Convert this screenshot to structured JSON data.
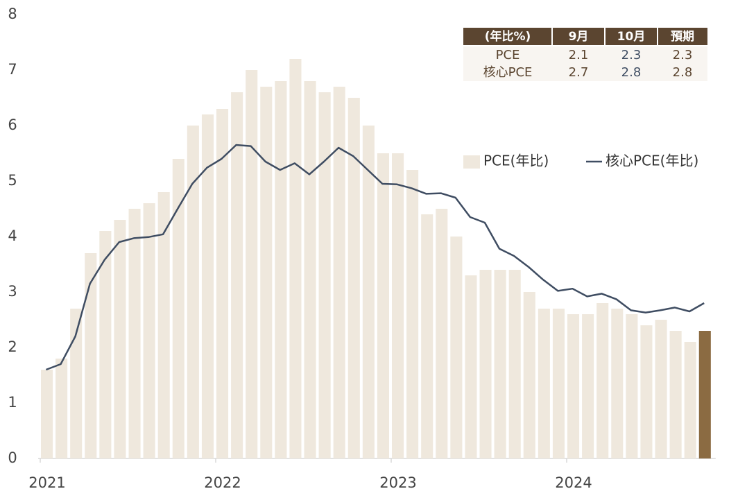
{
  "chart_data": {
    "type": "bar_line",
    "categories": [
      "2021",
      null,
      null,
      null,
      null,
      null,
      null,
      null,
      null,
      null,
      null,
      null,
      "2022",
      null,
      null,
      null,
      null,
      null,
      null,
      null,
      null,
      null,
      null,
      null,
      "2023",
      null,
      null,
      null,
      null,
      null,
      null,
      null,
      null,
      null,
      null,
      null,
      "2024",
      null,
      null,
      null,
      null,
      null,
      null,
      null,
      null,
      null
    ],
    "series": [
      {
        "name": "PCE(年比)",
        "type": "bar",
        "color": "#efe8dd",
        "colors": [
          "#efe8dd",
          "#efe8dd",
          "#efe8dd",
          "#efe8dd",
          "#efe8dd",
          "#efe8dd",
          "#efe8dd",
          "#efe8dd",
          "#efe8dd",
          "#efe8dd",
          "#efe8dd",
          "#efe8dd",
          "#efe8dd",
          "#efe8dd",
          "#efe8dd",
          "#efe8dd",
          "#efe8dd",
          "#efe8dd",
          "#efe8dd",
          "#efe8dd",
          "#efe8dd",
          "#efe8dd",
          "#efe8dd",
          "#efe8dd",
          "#efe8dd",
          "#efe8dd",
          "#efe8dd",
          "#efe8dd",
          "#efe8dd",
          "#efe8dd",
          "#efe8dd",
          "#efe8dd",
          "#efe8dd",
          "#efe8dd",
          "#efe8dd",
          "#efe8dd",
          "#efe8dd",
          "#efe8dd",
          "#efe8dd",
          "#efe8dd",
          "#efe8dd",
          "#efe8dd",
          "#efe8dd",
          "#efe8dd",
          "#efe8dd",
          "#8b6b42"
        ],
        "values": [
          1.6,
          1.8,
          2.7,
          3.7,
          4.1,
          4.3,
          4.5,
          4.6,
          4.8,
          5.4,
          6.0,
          6.2,
          6.3,
          6.6,
          7.0,
          6.7,
          6.8,
          7.2,
          6.8,
          6.6,
          6.7,
          6.5,
          6.0,
          5.5,
          5.5,
          5.2,
          4.4,
          4.5,
          4.0,
          3.3,
          3.4,
          3.4,
          3.4,
          3.0,
          2.7,
          2.7,
          2.6,
          2.6,
          2.8,
          2.7,
          2.6,
          2.4,
          2.5,
          2.3,
          2.1,
          2.3
        ]
      },
      {
        "name": "核心PCE(年比)",
        "type": "line",
        "color": "#3f4d62",
        "values": [
          1.6,
          1.7,
          2.2,
          3.15,
          3.58,
          3.9,
          3.97,
          3.99,
          4.04,
          4.5,
          4.95,
          5.24,
          5.4,
          5.65,
          5.63,
          5.35,
          5.2,
          5.32,
          5.12,
          5.35,
          5.6,
          5.45,
          5.2,
          4.95,
          4.94,
          4.87,
          4.77,
          4.78,
          4.7,
          4.35,
          4.25,
          3.78,
          3.65,
          3.45,
          3.22,
          3.02,
          3.06,
          2.92,
          2.97,
          2.87,
          2.67,
          2.63,
          2.67,
          2.72,
          2.65,
          2.8
        ]
      }
    ],
    "ylim": [
      0,
      8
    ],
    "yticks": [
      0,
      1,
      2,
      3,
      4,
      5,
      6,
      7,
      8
    ],
    "grid": false
  },
  "table": {
    "header": [
      "(年比%)",
      "9月",
      "10月",
      "預期"
    ],
    "rows": [
      [
        "PCE",
        "2.1",
        "2.3",
        "2.3"
      ],
      [
        "核心PCE",
        "2.7",
        "2.8",
        "2.8"
      ]
    ]
  }
}
